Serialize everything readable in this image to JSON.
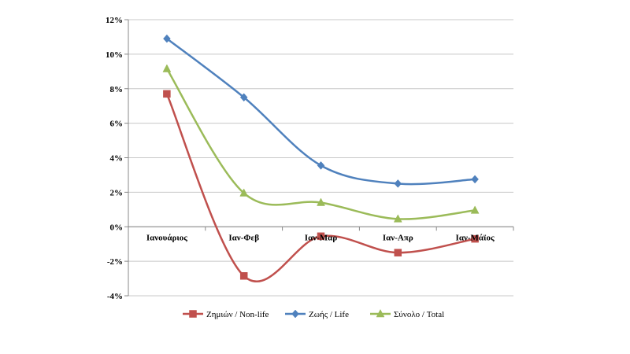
{
  "chart_data": {
    "type": "line",
    "categories": [
      "Ιανουάριος",
      "Ιαν-Φεβ",
      "Ιαν-Μαρ",
      "Ιαν-Απρ",
      "Ιαν-Μάϊος"
    ],
    "y_ticks": [
      "12%",
      "10%",
      "8%",
      "6%",
      "4%",
      "2%",
      "0%",
      "-2%",
      "-4%"
    ],
    "ylim": [
      -4,
      12
    ],
    "y_unit": "%",
    "grid": true,
    "smooth": true,
    "legend_position": "bottom",
    "series": [
      {
        "name": "Ζημιών / Non-life",
        "values": [
          7.7,
          -2.85,
          -0.55,
          -1.5,
          -0.7
        ],
        "color": "#c0504d",
        "marker": "square"
      },
      {
        "name": "Ζωής / Life",
        "values": [
          10.9,
          7.5,
          3.55,
          2.5,
          2.75
        ],
        "color": "#4f81bd",
        "marker": "diamond"
      },
      {
        "name": "Σύνολο / Total",
        "values": [
          9.15,
          1.95,
          1.4,
          0.45,
          0.95
        ],
        "color": "#9bbb59",
        "marker": "triangle"
      }
    ]
  }
}
